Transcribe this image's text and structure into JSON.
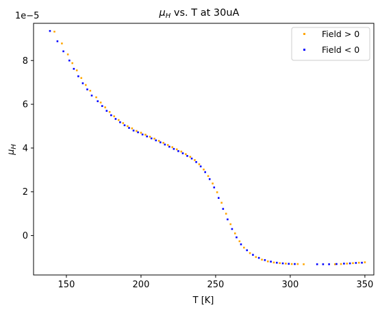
{
  "chart_data": {
    "type": "scatter",
    "title": "$\\mu_H$ vs. T at 30uA",
    "title_math": "μ",
    "title_math_sub": "H",
    "title_rest": " vs. T at 30uA",
    "xlabel": "T [K]",
    "ylabel_math": "μ",
    "ylabel_sub": "H",
    "offset_text": "1e−5",
    "xlim": [
      128,
      356
    ],
    "ylim": [
      -1.8,
      9.7
    ],
    "xticks": [
      150,
      200,
      250,
      300,
      350
    ],
    "xtick_labels": [
      "150",
      "200",
      "250",
      "300",
      "350"
    ],
    "yticks": [
      0,
      2,
      4,
      6,
      8
    ],
    "ytick_labels": [
      "0",
      "2",
      "4",
      "6",
      "8"
    ],
    "grid": false,
    "legend_position": "top-right",
    "series": [
      {
        "name": "Field > 0",
        "color": "#ffa500",
        "points": [
          [
            142,
            9.32
          ],
          [
            147,
            8.78
          ],
          [
            151,
            8.28
          ],
          [
            154,
            7.88
          ],
          [
            157,
            7.55
          ],
          [
            160,
            7.2
          ],
          [
            163,
            6.88
          ],
          [
            166,
            6.62
          ],
          [
            170,
            6.32
          ],
          [
            173,
            6.08
          ],
          [
            176,
            5.86
          ],
          [
            179,
            5.65
          ],
          [
            182,
            5.45
          ],
          [
            185,
            5.28
          ],
          [
            188,
            5.14
          ],
          [
            191,
            5.0
          ],
          [
            194,
            4.9
          ],
          [
            197,
            4.78
          ],
          [
            200,
            4.7
          ],
          [
            203,
            4.61
          ],
          [
            206,
            4.52
          ],
          [
            209,
            4.43
          ],
          [
            212,
            4.33
          ],
          [
            215,
            4.24
          ],
          [
            218,
            4.14
          ],
          [
            221,
            4.04
          ],
          [
            224,
            3.94
          ],
          [
            227,
            3.84
          ],
          [
            230,
            3.72
          ],
          [
            233,
            3.6
          ],
          [
            236,
            3.45
          ],
          [
            239,
            3.26
          ],
          [
            242,
            3.02
          ],
          [
            245,
            2.72
          ],
          [
            248,
            2.38
          ],
          [
            251,
            1.98
          ],
          [
            254,
            1.5
          ],
          [
            257,
            1.0
          ],
          [
            260,
            0.52
          ],
          [
            263,
            0.1
          ],
          [
            266,
            -0.26
          ],
          [
            269,
            -0.55
          ],
          [
            273,
            -0.8
          ],
          [
            277,
            -0.98
          ],
          [
            281,
            -1.1
          ],
          [
            285,
            -1.18
          ],
          [
            289,
            -1.23
          ],
          [
            293,
            -1.26
          ],
          [
            297,
            -1.28
          ],
          [
            301,
            -1.3
          ],
          [
            305,
            -1.3
          ],
          [
            309,
            -1.31
          ],
          [
            330,
            -1.31
          ],
          [
            334,
            -1.3
          ],
          [
            338,
            -1.28
          ],
          [
            342,
            -1.26
          ],
          [
            346,
            -1.24
          ],
          [
            350,
            -1.22
          ]
        ]
      },
      {
        "name": "Field < 0",
        "color": "#0000ff",
        "points": [
          [
            139,
            9.35
          ],
          [
            144,
            8.88
          ],
          [
            148,
            8.42
          ],
          [
            152,
            8.0
          ],
          [
            155,
            7.62
          ],
          [
            158,
            7.28
          ],
          [
            161,
            6.96
          ],
          [
            164,
            6.68
          ],
          [
            167,
            6.4
          ],
          [
            171,
            6.14
          ],
          [
            174,
            5.92
          ],
          [
            177,
            5.7
          ],
          [
            180,
            5.5
          ],
          [
            183,
            5.33
          ],
          [
            186,
            5.18
          ],
          [
            189,
            5.04
          ],
          [
            192,
            4.92
          ],
          [
            195,
            4.8
          ],
          [
            198,
            4.72
          ],
          [
            201,
            4.62
          ],
          [
            204,
            4.53
          ],
          [
            207,
            4.44
          ],
          [
            210,
            4.35
          ],
          [
            213,
            4.26
          ],
          [
            216,
            4.16
          ],
          [
            219,
            4.06
          ],
          [
            222,
            3.96
          ],
          [
            225,
            3.86
          ],
          [
            228,
            3.76
          ],
          [
            231,
            3.64
          ],
          [
            234,
            3.52
          ],
          [
            237,
            3.36
          ],
          [
            240,
            3.16
          ],
          [
            243,
            2.9
          ],
          [
            246,
            2.58
          ],
          [
            249,
            2.2
          ],
          [
            252,
            1.72
          ],
          [
            255,
            1.22
          ],
          [
            258,
            0.74
          ],
          [
            261,
            0.3
          ],
          [
            264,
            -0.08
          ],
          [
            267,
            -0.4
          ],
          [
            271,
            -0.67
          ],
          [
            275,
            -0.88
          ],
          [
            279,
            -1.02
          ],
          [
            283,
            -1.12
          ],
          [
            287,
            -1.19
          ],
          [
            291,
            -1.24
          ],
          [
            295,
            -1.27
          ],
          [
            299,
            -1.29
          ],
          [
            303,
            -1.3
          ],
          [
            318,
            -1.31
          ],
          [
            322,
            -1.31
          ],
          [
            326,
            -1.31
          ],
          [
            331,
            -1.3
          ],
          [
            336,
            -1.28
          ],
          [
            340,
            -1.27
          ],
          [
            344,
            -1.25
          ],
          [
            348,
            -1.24
          ]
        ]
      }
    ]
  }
}
